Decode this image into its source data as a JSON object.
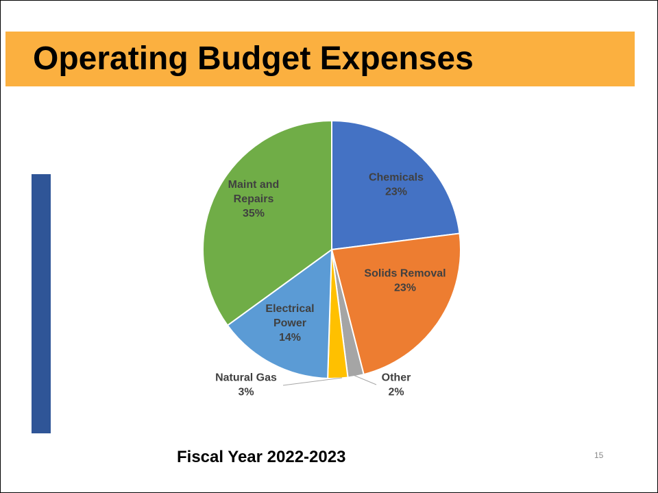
{
  "slide": {
    "title": "Operating Budget Expenses",
    "footer": "Fiscal Year 2022-2023",
    "page_number": "15",
    "title_bar_color": "#FBB040",
    "accent_color": "#2F5597"
  },
  "chart_data": {
    "type": "pie",
    "start": "top, clockwise",
    "slices": [
      {
        "label": [
          "Chemicals"
        ],
        "percent_label": "23%",
        "value": 23,
        "color": "#4472C4",
        "label_color": "#404040"
      },
      {
        "label": [
          "Solids Removal"
        ],
        "percent_label": "23%",
        "value": 23,
        "color": "#ED7D31",
        "label_color": "#404040"
      },
      {
        "label": [
          "Other"
        ],
        "percent_label": "2%",
        "value": 2,
        "color": "#A5A5A5",
        "label_color": "#404040"
      },
      {
        "label": [
          "Natural Gas"
        ],
        "percent_label": "3%",
        "value": 2.5,
        "color": "#FFC000",
        "label_color": "#404040"
      },
      {
        "label": [
          "Electrical",
          "Power"
        ],
        "percent_label": "14%",
        "value": 14.5,
        "color": "#5B9BD5",
        "label_color": "#404040"
      },
      {
        "label": [
          "Maint and",
          "Repairs"
        ],
        "percent_label": "35%",
        "value": 35,
        "color": "#70AD47",
        "label_color": "#404040"
      }
    ]
  }
}
